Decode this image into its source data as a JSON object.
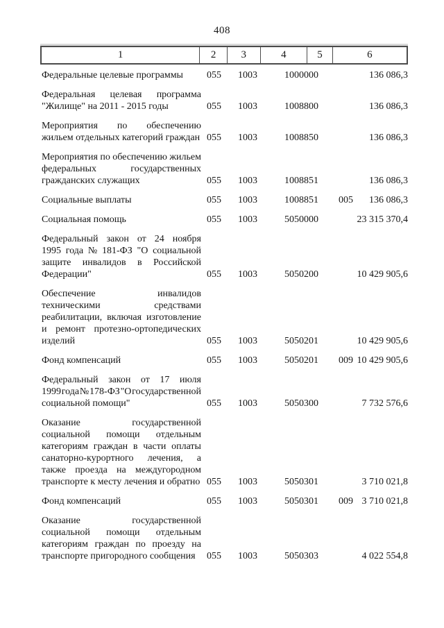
{
  "page": {
    "number": "408"
  },
  "colors": {
    "background": "#ffffff",
    "text": "#161616",
    "table_border": "#4a4a4a"
  },
  "table": {
    "header_labels": [
      "1",
      "2",
      "3",
      "4",
      "5",
      "6"
    ],
    "rows": [
      {
        "name_lines": [
          "Федеральные целевые программы"
        ],
        "c2": "055",
        "c3": "1003",
        "c4": "1000000",
        "c5": "",
        "c6": "136 086,3"
      },
      {
        "name_lines": [
          "Федеральная целевая программа",
          "\"Жилище\" на 2011 - 2015 годы"
        ],
        "c2": "055",
        "c3": "1003",
        "c4": "1008800",
        "c5": "",
        "c6": "136 086,3"
      },
      {
        "name_lines": [
          "Мероприятия по обеспечению",
          "жильем отдельных категорий граждан"
        ],
        "c2": "055",
        "c3": "1003",
        "c4": "1008850",
        "c5": "",
        "c6": "136 086,3"
      },
      {
        "name_lines": [
          "Мероприятия по обеспечению жильем",
          "федеральных государственных",
          "гражданских служащих"
        ],
        "c2": "055",
        "c3": "1003",
        "c4": "1008851",
        "c5": "",
        "c6": "136 086,3"
      },
      {
        "name_lines": [
          "Социальные выплаты"
        ],
        "c2": "055",
        "c3": "1003",
        "c4": "1008851",
        "c5": "005",
        "c6": "136 086,3"
      },
      {
        "name_lines": [
          "Социальная помощь"
        ],
        "c2": "055",
        "c3": "1003",
        "c4": "5050000",
        "c5": "",
        "c6": "23 315 370,4"
      },
      {
        "name_lines": [
          "Федеральный закон от 24 ноября",
          "1995 года № 181-ФЗ \"О социальной",
          "защите инвалидов в Российской",
          "Федерации\""
        ],
        "c2": "055",
        "c3": "1003",
        "c4": "5050200",
        "c5": "",
        "c6": "10 429 905,6"
      },
      {
        "name_lines": [
          "Обеспечение инвалидов",
          "техническими средствами",
          "реабилитации, включая изготовление",
          "и ремонт протезно-ортопедических",
          "изделий"
        ],
        "c2": "055",
        "c3": "1003",
        "c4": "5050201",
        "c5": "",
        "c6": "10 429 905,6"
      },
      {
        "name_lines": [
          "Фонд компенсаций"
        ],
        "c2": "055",
        "c3": "1003",
        "c4": "5050201",
        "c5": "009",
        "c6": "10 429 905,6"
      },
      {
        "name_lines": [
          "Федеральный закон от 17 июля",
          "1999 года № 178-ФЗ \"О государственной",
          "социальной помощи\""
        ],
        "c2": "055",
        "c3": "1003",
        "c4": "5050300",
        "c5": "",
        "c6": "7 732 576,6"
      },
      {
        "name_lines": [
          "Оказание государственной",
          "социальной помощи отдельным",
          "категориям граждан в части оплаты",
          "санаторно-курортного лечения, а",
          "также проезда на междугородном",
          "транспорте к месту лечения и обратно"
        ],
        "c2": "055",
        "c3": "1003",
        "c4": "5050301",
        "c5": "",
        "c6": "3 710 021,8"
      },
      {
        "name_lines": [
          "Фонд компенсаций"
        ],
        "c2": "055",
        "c3": "1003",
        "c4": "5050301",
        "c5": "009",
        "c6": "3 710 021,8"
      },
      {
        "name_lines": [
          "Оказание государственной",
          "социальной помощи отдельным",
          "категориям граждан по проезду на",
          "транспорте пригородного сообщения"
        ],
        "c2": "055",
        "c3": "1003",
        "c4": "5050303",
        "c5": "",
        "c6": "4 022 554,8"
      }
    ]
  }
}
